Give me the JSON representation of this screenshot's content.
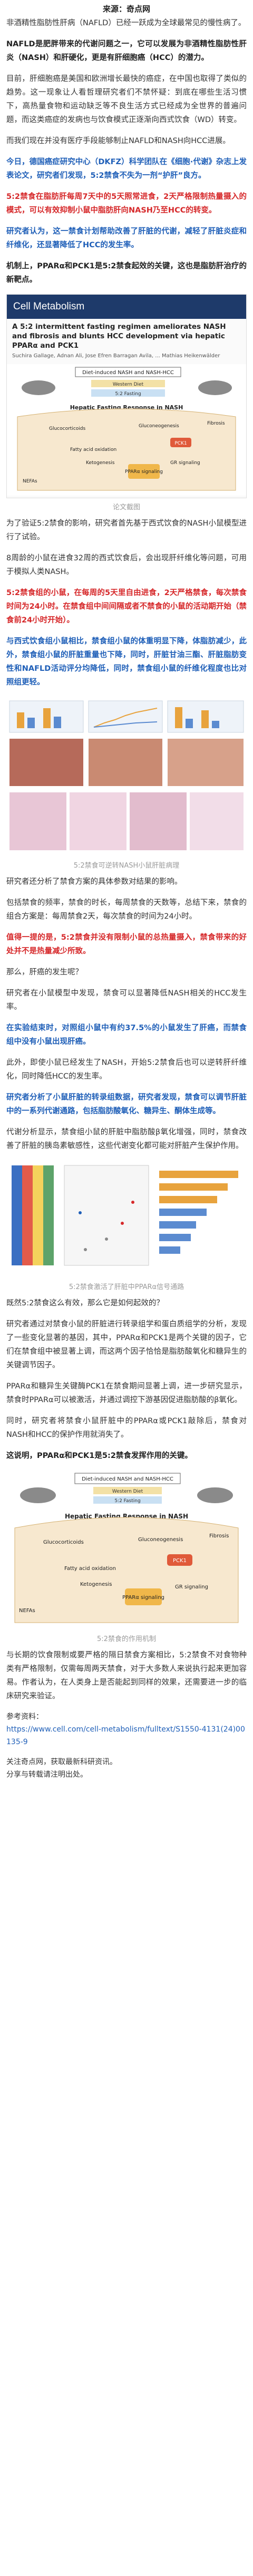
{
  "source": "来源：奇点网",
  "p1": "非酒精性脂肪性肝病（NAFLD）已经一跃成为全球最常见的慢性病了。",
  "p2_bold": "NAFLD是肥胖带来的代谢问题之一，它可以发展为非酒精性脂肪性肝炎（NASH）和肝硬化，更是有肝细胞癌（HCC）的潜力。",
  "p3": "目前，肝细胞癌是美国和欧洲增长最快的癌症，在中国也取得了类似的趋势。这一现象让人看哲理研究者们不禁怀疑：到底在哪些生活习惯下，高热量食物和运动缺乏等不良生活方式已经成为全世界的普遍问题，而这类癌症的发病也与饮食模式正逐渐向西式饮食（WD）转变。",
  "p4": "而我们现在并没有医疗手段能够制止NAFLD和NASH向HCC进展。",
  "p5_red": "今日，德国癌症研究中心（DKFZ）科学团队在《细胞·代谢》杂志上发表论文，研究者们发现，5:2禁食不失为一剂“护肝”良方。",
  "p6_red": "5:2禁食在脂肪肝每周7天中的5天照常进食，2天严格限制热量摄入的模式，可以有效抑制小鼠中脂肪肝向NASH乃至HCC的转变。",
  "p7_blue": "研究者认为，这一禁食计划帮助改善了肝脏的代谢，减轻了肝脏炎症和纤维化，还显著降低了HCC的发生率。",
  "p8": "机制上，PPARα和PCK1是5:2禁食起效的关键，这也是脂肪肝治疗的新靶点。",
  "fig1_journal": "Cell Metabolism",
  "fig1_title": "A 5:2 intermittent fasting regimen ameliorates NASH and fibrosis and blunts HCC development via hepatic PPARα and PCK1",
  "fig1_authors": "Suchira Gallage, Adnan Ali, Jose Efren Barragan Avila, ... Mathias Heikenwälder",
  "fig1_caption": "论文截图",
  "fig2_labels": {
    "top": "Diet-induced NASH and NASH-HCC",
    "middle": "Hepatic Fasting Response in NASH",
    "western": "Western Diet",
    "fasting": "5:2 Fasting"
  },
  "fig2_nodes": {
    "glucocorticoids": "Glucocorticoids",
    "gluconeogenesis": "Gluconeogenesis",
    "pck1": "PCK1",
    "fibrosis": "Fibrosis",
    "fao": "Fatty acid oxidation",
    "ketogenesis": "Ketogenesis",
    "ppara": "PPARα signaling",
    "gr": "GR signaling",
    "nefas": "NEFAs"
  },
  "p9": "为了验证5:2禁食的影响，研究者首先基于西式饮食的NASH小鼠模型进行了试验。",
  "p10": "8周龄的小鼠在进食32周的西式饮食后，会出现肝纤维化等问题，可用于模拟人类NASH。",
  "p11_red": "5:2禁食组的小鼠，在每周的5天里自由进食，2天严格禁食，每次禁食时间为24小时。在禁食组中间间隔或者不禁食的小鼠的活动期开始（禁食前24小时开始）。",
  "p12_red": "与西式饮食组小鼠相比，禁食组小鼠的体重明显下降，体脂肪减少，此外，禁食组小鼠的肝脏重量也下降，同时，肝脏甘油三酯、肝脏脂肪变性和NAFLD活动评分均降低，同时，禁食组小鼠的纤维化程度也比对照组更轻。",
  "fig3_caption": "5:2禁食可逆转NASH小鼠肝脏病理",
  "p13": "研究者还分析了禁食方案的具体参数对结果的影响。",
  "p14": "包括禁食的频率，禁食的时长，每周禁食的天数等，总结下来，禁食的组合方案是：每周禁食2天，每次禁食的时间为24小时。",
  "p15_red": "值得一提的是，5:2禁食并没有限制小鼠的总热量摄入，禁食带来的好处并不是热量减少所致。",
  "p16": "那么，肝癌的发生呢？",
  "p17": "研究者在小鼠模型中发现，禁食可以显著降低NASH相关的HCC发生率。",
  "p18_red": "在实验结束时，对照组小鼠中有约37.5%的小鼠发生了肝癌，而禁食组中没有小鼠出现肝癌。",
  "p19": "此外，即使小鼠已经发生了NASH，开始5:2禁食后也可以逆转肝纤维化，同时降低HCC的发生率。",
  "p20_red": "研究者分析了小鼠肝脏的转录组数据，研究者发现，禁食可以调节肝脏中的一系列代谢通路，包括脂肪酸氧化、糖异生、酮体生成等。",
  "p21": "代谢分析显示，禁食组小鼠的肝脏中脂肪酸β氧化增强，同时，禁食改善了肝脏的胰岛素敏感性，这些代谢变化都可能对肝脏产生保护作用。",
  "fig4_caption": "5:2禁食激活了肝脏中PPARα信号通路",
  "p22": "既然5:2禁食这么有效，那么它是如何起效的？",
  "p23": "研究者通过对禁食小鼠的肝脏进行转录组学和蛋白质组学的分析，发现了一些变化显著的基因，其中，PPARα和PCK1是两个关键的因子，它们在禁食组中被显著上调，而这两个因子恰恰是脂肪酸氧化和糖异生的关键调节因子。",
  "p24": "PPARα和糖异生关键酶PCK1在禁食期间显著上调，进一步研究显示，禁食时PPARα可以被激活，并通过调控下游基因促进脂肪酸的β氧化。",
  "p25": "同时，研究者将禁食小鼠肝脏中的PPARα或PCK1敲除后，禁食对NASH和HCC的保护作用就消失了。",
  "p26": "这说明，PPARα和PCK1是5:2禁食发挥作用的关键。",
  "fig5_caption": "5:2禁食的作用机制",
  "p27": "与长期的饮食限制或要严格的隔日禁食方案相比，5:2禁食不对食物种类有严格限制，仅需每周两天禁食，对于大多数人来说执行起来更加容易。作者认为，在人类身上是否能起到同样的效果，还需要进一步的临床研究来验证。",
  "ref_label": "参考资料：",
  "ref_url": "https://www.cell.com/cell-metabolism/fulltext/S1550-4131(24)00135-9",
  "footer1": "关注奇点网，获取最新科研资讯。",
  "footer2": "分享与转载请注明出处。"
}
